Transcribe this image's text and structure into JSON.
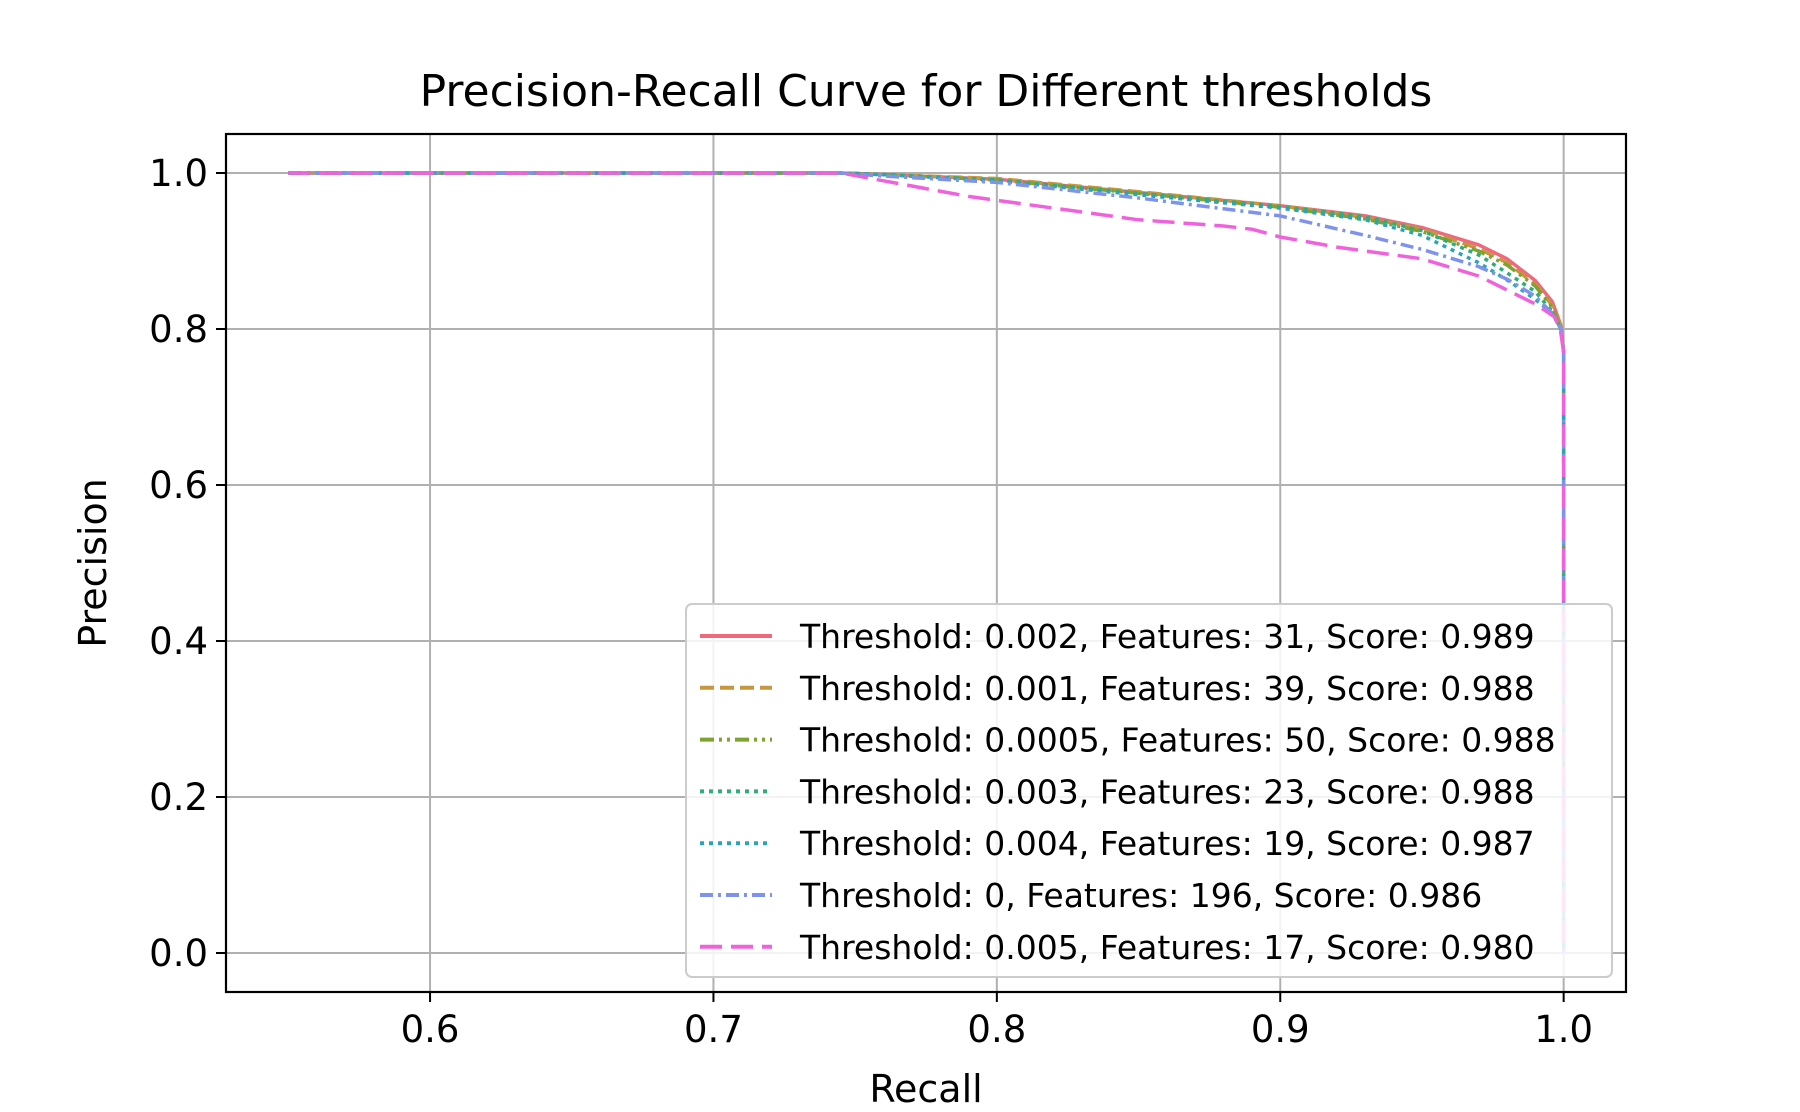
{
  "chart_data": {
    "type": "line",
    "title": "Precision-Recall Curve for Different thresholds",
    "xlabel": "Recall",
    "ylabel": "Precision",
    "xlim": [
      0.528,
      1.022
    ],
    "ylim": [
      -0.05,
      1.05
    ],
    "xticks": [
      0.6,
      0.7,
      0.8,
      0.9,
      1.0
    ],
    "xtick_labels": [
      "0.6",
      "0.7",
      "0.8",
      "0.9",
      "1.0"
    ],
    "yticks": [
      0.0,
      0.2,
      0.4,
      0.6,
      0.8,
      1.0
    ],
    "ytick_labels": [
      "0.0",
      "0.2",
      "0.4",
      "0.6",
      "0.8",
      "1.0"
    ],
    "grid": true,
    "legend_position": "lower-right",
    "series": [
      {
        "name": "Threshold: 0.002, Features: 31, Score: 0.989",
        "color": "#f0687b",
        "style": "solid",
        "points": [
          [
            0.55,
            1.0
          ],
          [
            0.745,
            1.0
          ],
          [
            0.76,
            0.998
          ],
          [
            0.8,
            0.992
          ],
          [
            0.85,
            0.975
          ],
          [
            0.9,
            0.958
          ],
          [
            0.93,
            0.945
          ],
          [
            0.95,
            0.93
          ],
          [
            0.97,
            0.908
          ],
          [
            0.98,
            0.89
          ],
          [
            0.99,
            0.862
          ],
          [
            0.996,
            0.835
          ],
          [
            0.999,
            0.805
          ],
          [
            1.0,
            0.77
          ],
          [
            1.0,
            0.0
          ]
        ]
      },
      {
        "name": "Threshold: 0.001, Features: 39, Score: 0.988",
        "color": "#c8963e",
        "style": "dashed",
        "points": [
          [
            0.55,
            1.0
          ],
          [
            0.745,
            1.0
          ],
          [
            0.76,
            0.998
          ],
          [
            0.8,
            0.993
          ],
          [
            0.85,
            0.976
          ],
          [
            0.9,
            0.958
          ],
          [
            0.93,
            0.943
          ],
          [
            0.95,
            0.928
          ],
          [
            0.97,
            0.903
          ],
          [
            0.98,
            0.885
          ],
          [
            0.99,
            0.857
          ],
          [
            0.996,
            0.83
          ],
          [
            0.999,
            0.805
          ],
          [
            1.0,
            0.77
          ],
          [
            1.0,
            0.0
          ]
        ]
      },
      {
        "name": "Threshold: 0.0005, Features: 50, Score: 0.988",
        "color": "#7ea32f",
        "style": "dashdotdot",
        "points": [
          [
            0.55,
            1.0
          ],
          [
            0.745,
            1.0
          ],
          [
            0.76,
            0.998
          ],
          [
            0.8,
            0.991
          ],
          [
            0.85,
            0.974
          ],
          [
            0.9,
            0.956
          ],
          [
            0.93,
            0.941
          ],
          [
            0.95,
            0.925
          ],
          [
            0.97,
            0.9
          ],
          [
            0.98,
            0.882
          ],
          [
            0.99,
            0.855
          ],
          [
            0.996,
            0.828
          ],
          [
            0.999,
            0.8
          ],
          [
            1.0,
            0.77
          ],
          [
            1.0,
            0.0
          ]
        ]
      },
      {
        "name": "Threshold: 0.003, Features: 23, Score: 0.988",
        "color": "#2fae7a",
        "style": "dotted",
        "points": [
          [
            0.55,
            1.0
          ],
          [
            0.745,
            1.0
          ],
          [
            0.76,
            0.998
          ],
          [
            0.8,
            0.991
          ],
          [
            0.85,
            0.974
          ],
          [
            0.9,
            0.957
          ],
          [
            0.93,
            0.944
          ],
          [
            0.95,
            0.926
          ],
          [
            0.97,
            0.895
          ],
          [
            0.98,
            0.872
          ],
          [
            0.99,
            0.848
          ],
          [
            0.996,
            0.822
          ],
          [
            0.999,
            0.8
          ],
          [
            1.0,
            0.77
          ],
          [
            1.0,
            0.0
          ]
        ]
      },
      {
        "name": "Threshold: 0.004, Features: 19, Score: 0.987",
        "color": "#2aa5b8",
        "style": "dotted",
        "points": [
          [
            0.55,
            1.0
          ],
          [
            0.745,
            1.0
          ],
          [
            0.76,
            0.998
          ],
          [
            0.8,
            0.99
          ],
          [
            0.85,
            0.972
          ],
          [
            0.9,
            0.955
          ],
          [
            0.93,
            0.94
          ],
          [
            0.95,
            0.92
          ],
          [
            0.97,
            0.885
          ],
          [
            0.98,
            0.863
          ],
          [
            0.99,
            0.838
          ],
          [
            0.996,
            0.82
          ],
          [
            0.999,
            0.8
          ],
          [
            1.0,
            0.77
          ],
          [
            1.0,
            0.0
          ]
        ]
      },
      {
        "name": "Threshold: 0, Features: 196, Score: 0.986",
        "color": "#7d93ee",
        "style": "dashdot",
        "points": [
          [
            0.55,
            1.0
          ],
          [
            0.745,
            1.0
          ],
          [
            0.76,
            0.996
          ],
          [
            0.8,
            0.988
          ],
          [
            0.85,
            0.968
          ],
          [
            0.9,
            0.945
          ],
          [
            0.93,
            0.92
          ],
          [
            0.95,
            0.902
          ],
          [
            0.97,
            0.88
          ],
          [
            0.98,
            0.864
          ],
          [
            0.99,
            0.842
          ],
          [
            0.996,
            0.82
          ],
          [
            0.999,
            0.8
          ],
          [
            1.0,
            0.77
          ],
          [
            1.0,
            0.0
          ]
        ]
      },
      {
        "name": "Threshold: 0.005, Features: 17, Score: 0.980",
        "color": "#f062dc",
        "style": "longdash",
        "points": [
          [
            0.55,
            1.0
          ],
          [
            0.745,
            1.0
          ],
          [
            0.76,
            0.99
          ],
          [
            0.79,
            0.97
          ],
          [
            0.82,
            0.955
          ],
          [
            0.85,
            0.94
          ],
          [
            0.88,
            0.932
          ],
          [
            0.89,
            0.928
          ],
          [
            0.9,
            0.918
          ],
          [
            0.92,
            0.905
          ],
          [
            0.95,
            0.89
          ],
          [
            0.97,
            0.868
          ],
          [
            0.98,
            0.85
          ],
          [
            0.99,
            0.832
          ],
          [
            0.997,
            0.815
          ],
          [
            0.999,
            0.795
          ],
          [
            1.0,
            0.77
          ],
          [
            1.0,
            0.0
          ]
        ]
      }
    ]
  }
}
